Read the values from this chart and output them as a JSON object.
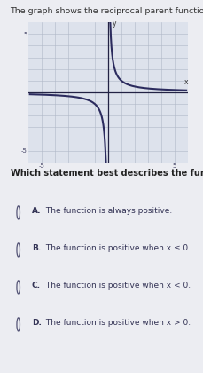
{
  "title": "The graph shows the reciprocal parent function.",
  "question": "Which statement best describes the function?",
  "options": [
    {
      "label": "A.",
      "text": " The function is always positive."
    },
    {
      "label": "B.",
      "text": " The function is positive when x ≤ 0."
    },
    {
      "label": "C.",
      "text": " The function is positive when x < 0."
    },
    {
      "label": "D.",
      "text": " The function is positive when x > 0."
    }
  ],
  "xlim": [
    -6,
    6
  ],
  "ylim": [
    -6,
    6
  ],
  "curve_color": "#2b2b5e",
  "grid_color": "#b0b8c8",
  "axis_color": "#222244",
  "plot_bg": "#dde2ec",
  "title_fontsize": 6.8,
  "question_fontsize": 7.0,
  "option_fontsize": 6.5,
  "fig_bg": "#ecedf2"
}
